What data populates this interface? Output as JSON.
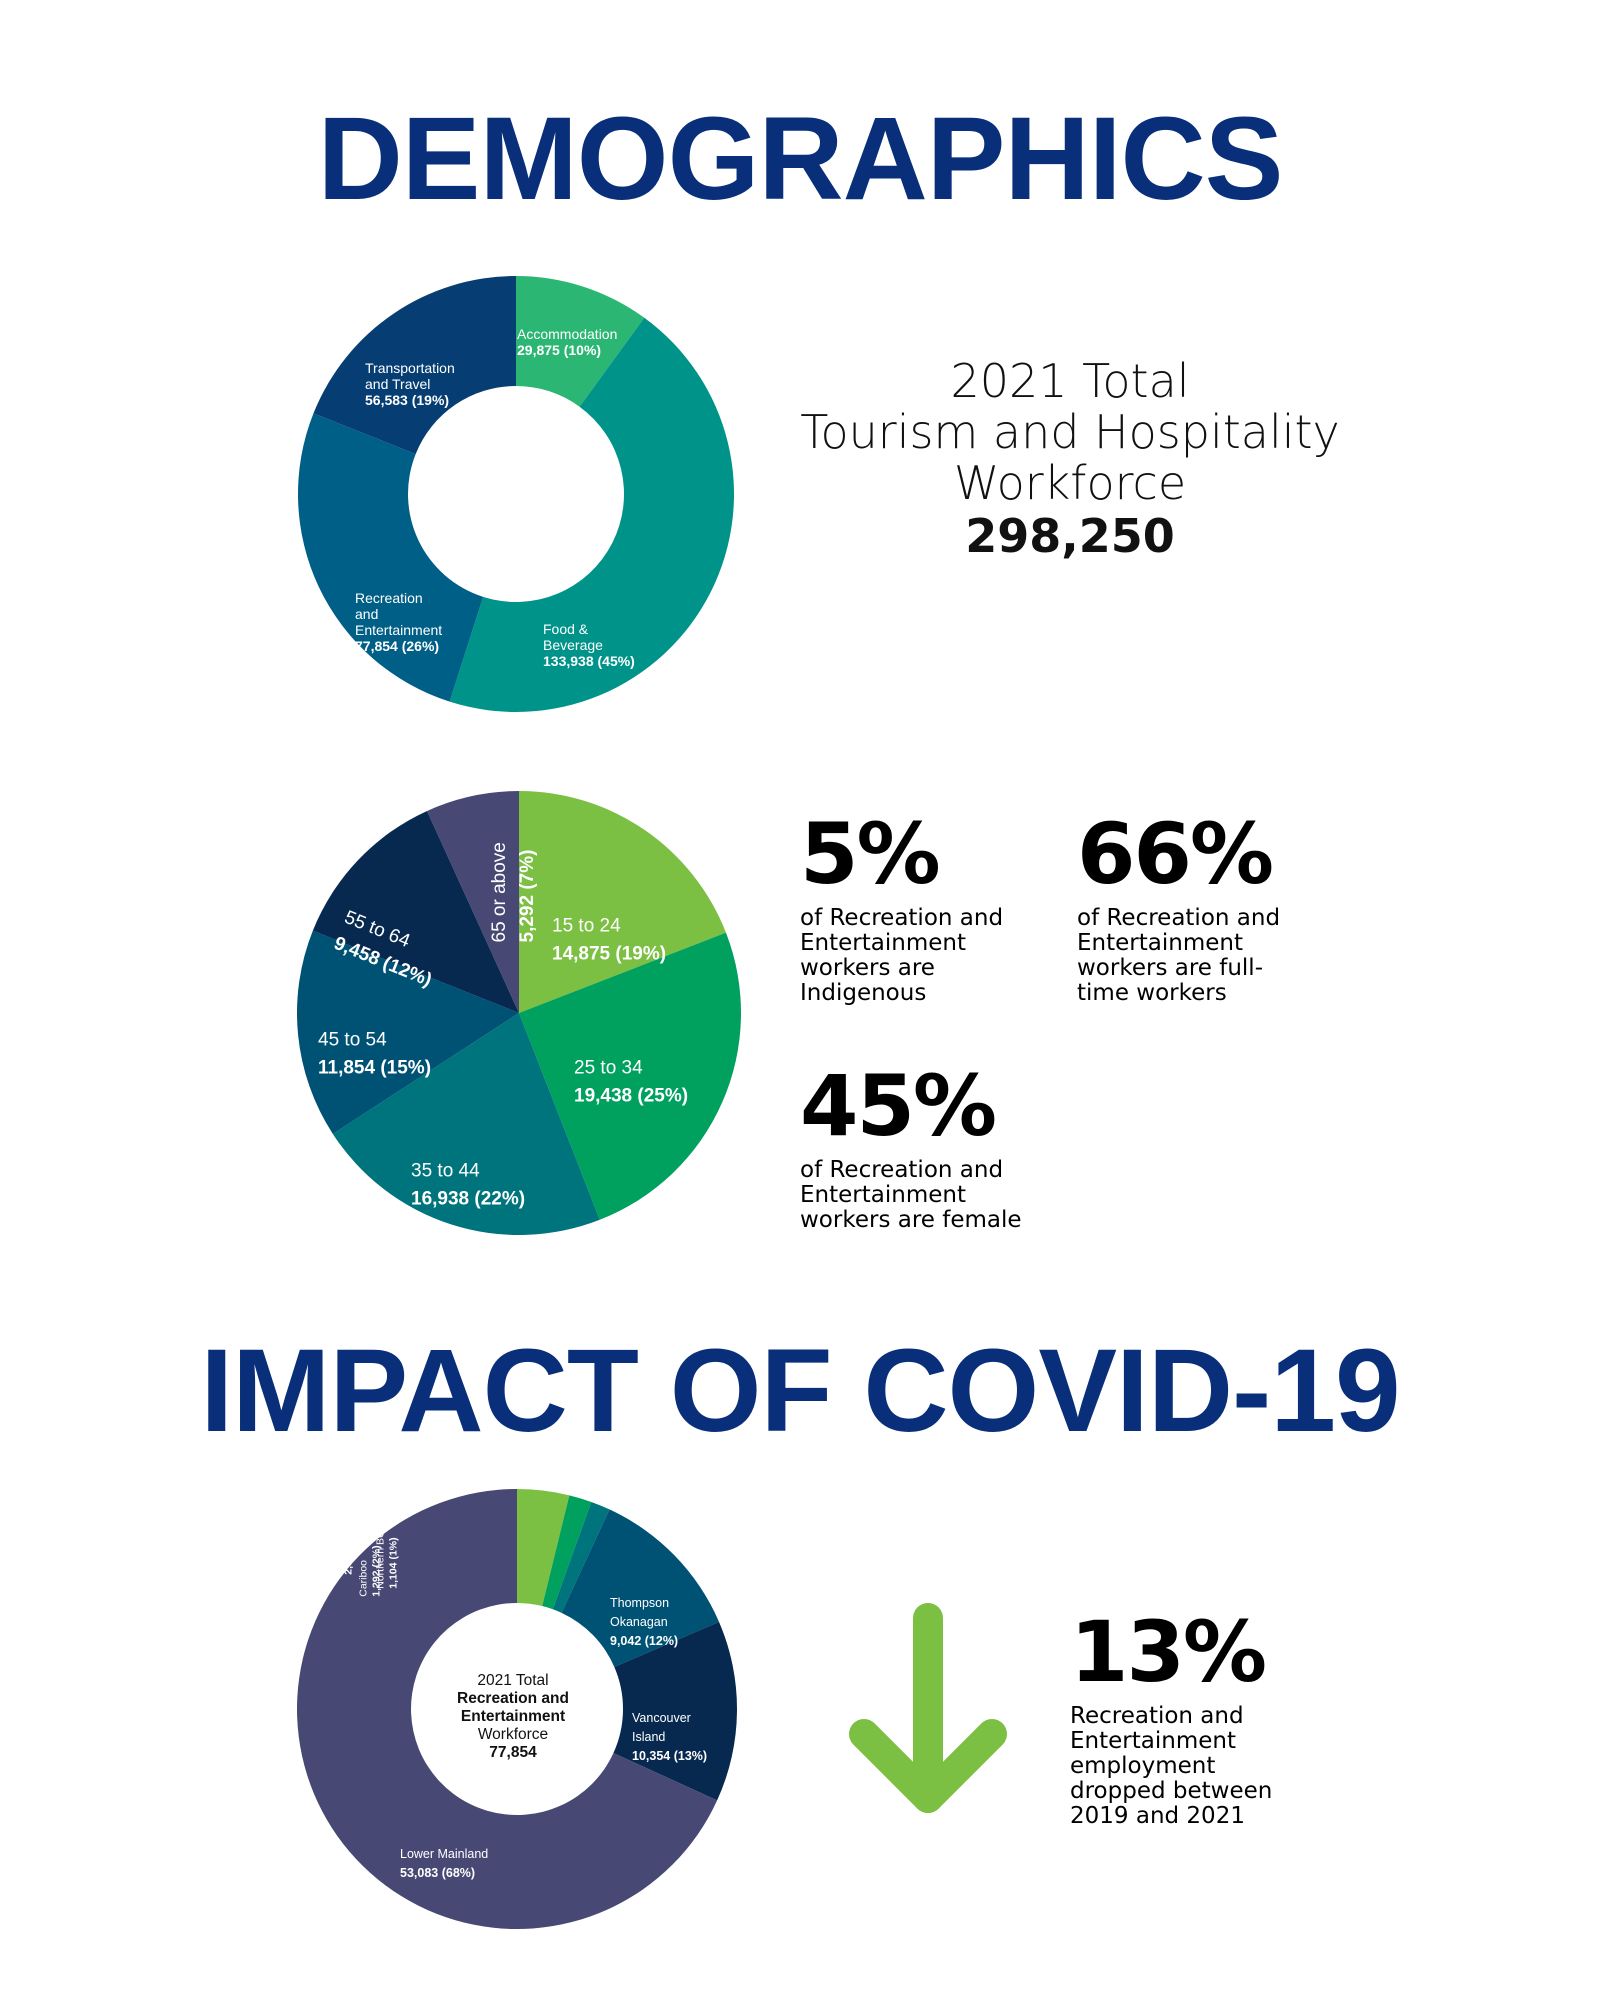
{
  "headings": {
    "demographics": "DEMOGRAPHICS",
    "covid": "IMPACT OF COVID-19"
  },
  "total_block": {
    "lines": [
      "2021 Total",
      "Tourism and Hospitality",
      "Workforce"
    ],
    "value": "298,250"
  },
  "stats": {
    "indigenous": {
      "value": "5%",
      "desc": "of Recreation and\nEntertainment\nworkers are\nIndigenous"
    },
    "fulltime": {
      "value": "66%",
      "desc": "of Recreation and\nEntertainment\nworkers are full-\ntime workers"
    },
    "female": {
      "value": "45%",
      "desc": "of Recreation and\nEntertainment\nworkers are female"
    },
    "drop": {
      "value": "13%",
      "desc": "Recreation and\nEntertainment\nemployment\ndropped between\n2019 and 2021"
    }
  },
  "colors": {
    "heading": "#0a2f7a",
    "arrow": "#7bbf43"
  },
  "icons": {
    "drop_arrow": "arrow-down-icon"
  },
  "chart_data": [
    {
      "type": "pie",
      "variant": "donut",
      "segments": [
        {
          "label": [
            "Accommodation"
          ],
          "value_label": "29,875 (10%)",
          "value": 29875,
          "color": "#2bb673"
        },
        {
          "label": [
            "Food &",
            "Beverage"
          ],
          "value_label": "133,938 (45%)",
          "value": 133938,
          "color": "#00938a"
        },
        {
          "label": [
            "Recreation",
            "and",
            "Entertainment"
          ],
          "value_label": "77,854 (26%)",
          "value": 77854,
          "color": "#005f87"
        },
        {
          "label": [
            "Transportation",
            "and Travel"
          ],
          "value_label": "56,583 (19%)",
          "value": 56583,
          "color": "#063e73"
        }
      ]
    },
    {
      "type": "pie",
      "segments": [
        {
          "label": [
            "15 to 24"
          ],
          "value_label": "14,875 (19%)",
          "value": 14875,
          "color": "#7bbf43"
        },
        {
          "label": [
            "25 to 34"
          ],
          "value_label": "19,438 (25%)",
          "value": 19438,
          "color": "#00a05e"
        },
        {
          "label": [
            "35 to 44"
          ],
          "value_label": "16,938 (22%)",
          "value": 16938,
          "color": "#00747c"
        },
        {
          "label": [
            "45 to 54"
          ],
          "value_label": "11,854 (15%)",
          "value": 11854,
          "color": "#005275"
        },
        {
          "label": [
            "55 to 64"
          ],
          "value_label": "9,458 (12%)",
          "value": 9458,
          "color": "#07294f"
        },
        {
          "label": [
            "65 or above"
          ],
          "value_label": "5,292 (7%)",
          "value": 5292,
          "color": "#474873"
        }
      ]
    },
    {
      "type": "pie",
      "variant": "donut",
      "center": {
        "line1": "2021 Total",
        "line2": "Recreation and",
        "line3": "Entertainment",
        "line4": "Workforce",
        "value": "77,854"
      },
      "segments": [
        {
          "label": [
            "Kootenay"
          ],
          "value_label": "2,979 (4%)",
          "value": 2979,
          "color": "#7bbf43"
        },
        {
          "label": [
            "Cariboo"
          ],
          "value_label": "1,292 (2%)",
          "value": 1292,
          "color": "#00a05e"
        },
        {
          "label": [
            "Northern BC"
          ],
          "value_label": "1,104 (1%)",
          "value": 1104,
          "color": "#00747c"
        },
        {
          "label": [
            "Thompson",
            "Okanagan"
          ],
          "value_label": "9,042 (12%)",
          "value": 9042,
          "color": "#005275"
        },
        {
          "label": [
            "Vancouver",
            "Island"
          ],
          "value_label": "10,354 (13%)",
          "value": 10354,
          "color": "#07294f"
        },
        {
          "label": [
            "Lower Mainland"
          ],
          "value_label": "53,083 (68%)",
          "value": 53083,
          "color": "#474873"
        }
      ]
    }
  ]
}
